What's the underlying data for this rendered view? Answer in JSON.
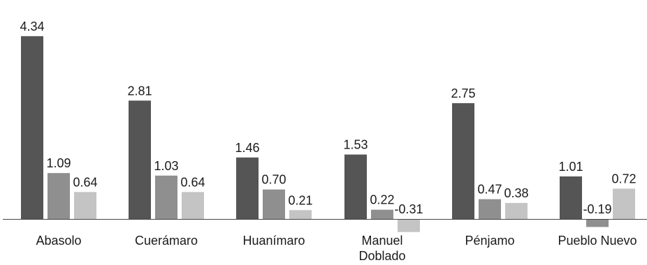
{
  "chart_data": {
    "type": "bar",
    "title": "",
    "xlabel": "",
    "ylabel": "",
    "ylim": [
      -0.45,
      4.5
    ],
    "grid": false,
    "legend": "none",
    "categories": [
      "Abasolo",
      "Cuerámaro",
      "Huanímaro",
      "Manuel Doblado",
      "Pénjamo",
      "Pueblo Nuevo"
    ],
    "category_lines": [
      [
        "Abasolo"
      ],
      [
        "Cuerámaro"
      ],
      [
        "Huanímaro"
      ],
      [
        "Manuel",
        "Doblado"
      ],
      [
        "Pénjamo"
      ],
      [
        "Pueblo Nuevo"
      ]
    ],
    "series": [
      {
        "values": [
          4.34,
          2.81,
          1.46,
          1.53,
          2.75,
          1.01
        ],
        "labels": [
          "4.34",
          "2.81",
          "1.46",
          "1.53",
          "2.75",
          "1.01"
        ],
        "color": "#555555"
      },
      {
        "values": [
          1.09,
          1.03,
          0.7,
          0.22,
          0.47,
          -0.19
        ],
        "labels": [
          "1.09",
          "1.03",
          "0.70",
          "0.22",
          "0.47",
          "-0.19"
        ],
        "color": "#8f8f8f"
      },
      {
        "values": [
          0.64,
          0.64,
          0.21,
          -0.31,
          0.38,
          0.72
        ],
        "labels": [
          "0.64",
          "0.64",
          "0.21",
          "-0.31",
          "0.38",
          "0.72"
        ],
        "color": "#c4c4c4"
      }
    ]
  }
}
